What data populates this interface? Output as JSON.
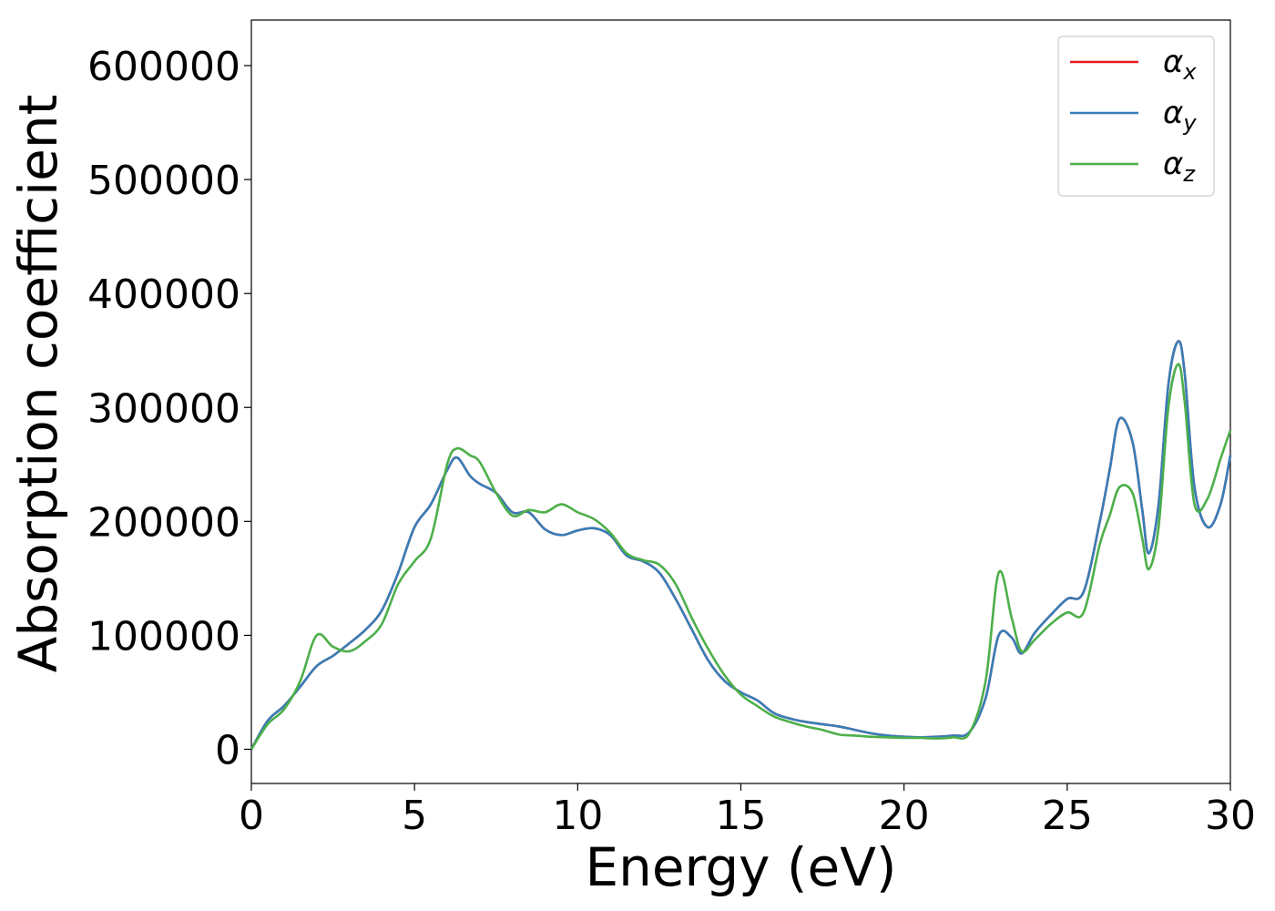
{
  "chart_data": {
    "type": "line",
    "title": "",
    "xlabel": "Energy (eV)",
    "ylabel": "Absorption coefficient",
    "xlim": [
      0,
      30
    ],
    "ylim": [
      -30000,
      640000
    ],
    "xticks": [
      0,
      5,
      10,
      15,
      20,
      25,
      30
    ],
    "yticks": [
      0,
      100000,
      200000,
      300000,
      400000,
      500000,
      600000
    ],
    "xtick_labels": [
      "0",
      "5",
      "10",
      "15",
      "20",
      "25",
      "30"
    ],
    "ytick_labels": [
      "0",
      "100000",
      "200000",
      "300000",
      "400000",
      "500000",
      "600000"
    ],
    "grid": false,
    "legend_position": "top-right",
    "series": [
      {
        "name": "αx",
        "label_base": "α",
        "label_sub": "x",
        "color": "#e41a1c",
        "x": [
          0,
          0.5,
          1,
          1.5,
          2,
          2.5,
          3,
          3.5,
          4,
          4.5,
          5,
          5.5,
          6,
          6.3,
          6.7,
          7,
          7.5,
          8,
          8.5,
          9,
          9.5,
          10,
          10.5,
          11,
          11.5,
          12,
          12.5,
          13,
          13.5,
          14,
          14.5,
          15,
          15.5,
          16,
          16.5,
          17,
          17.5,
          18,
          18.5,
          19,
          19.5,
          20,
          20.5,
          21,
          21.5,
          22,
          22.5,
          22.9,
          23.3,
          23.6,
          24,
          24.5,
          25,
          25.5,
          26,
          26.3,
          26.6,
          27,
          27.3,
          27.5,
          27.8,
          28.1,
          28.4,
          28.6,
          28.9,
          29.3,
          29.7,
          30
        ],
        "y": [
          0,
          25000,
          38000,
          55000,
          73000,
          82000,
          93000,
          105000,
          122000,
          155000,
          195000,
          215000,
          245000,
          256000,
          240000,
          233000,
          225000,
          208000,
          208000,
          193000,
          188000,
          192000,
          194000,
          188000,
          170000,
          165000,
          155000,
          132000,
          105000,
          78000,
          60000,
          50000,
          43000,
          32000,
          27000,
          24000,
          22000,
          20000,
          17000,
          14000,
          12000,
          11000,
          10500,
          11000,
          12000,
          15000,
          45000,
          100000,
          98000,
          84000,
          102000,
          118000,
          132000,
          138000,
          200000,
          245000,
          290000,
          270000,
          210000,
          172000,
          215000,
          320000,
          358000,
          330000,
          230000,
          195000,
          215000,
          258000
        ]
      },
      {
        "name": "αy",
        "label_base": "α",
        "label_sub": "y",
        "color": "#377eb8",
        "x": [
          0,
          0.5,
          1,
          1.5,
          2,
          2.5,
          3,
          3.5,
          4,
          4.5,
          5,
          5.5,
          6,
          6.3,
          6.7,
          7,
          7.5,
          8,
          8.5,
          9,
          9.5,
          10,
          10.5,
          11,
          11.5,
          12,
          12.5,
          13,
          13.5,
          14,
          14.5,
          15,
          15.5,
          16,
          16.5,
          17,
          17.5,
          18,
          18.5,
          19,
          19.5,
          20,
          20.5,
          21,
          21.5,
          22,
          22.5,
          22.9,
          23.3,
          23.6,
          24,
          24.5,
          25,
          25.5,
          26,
          26.3,
          26.6,
          27,
          27.3,
          27.5,
          27.8,
          28.1,
          28.4,
          28.6,
          28.9,
          29.3,
          29.7,
          30
        ],
        "y": [
          0,
          25000,
          38000,
          55000,
          73000,
          82000,
          93000,
          105000,
          122000,
          155000,
          195000,
          215000,
          245000,
          256000,
          240000,
          233000,
          225000,
          208000,
          208000,
          193000,
          188000,
          192000,
          194000,
          188000,
          170000,
          165000,
          155000,
          132000,
          105000,
          78000,
          60000,
          50000,
          43000,
          32000,
          27000,
          24000,
          22000,
          20000,
          17000,
          14000,
          12000,
          11000,
          10500,
          11000,
          12000,
          15000,
          45000,
          100000,
          98000,
          84000,
          102000,
          118000,
          132000,
          138000,
          200000,
          245000,
          290000,
          270000,
          210000,
          172000,
          215000,
          320000,
          358000,
          330000,
          230000,
          195000,
          215000,
          258000
        ]
      },
      {
        "name": "αz",
        "label_base": "α",
        "label_sub": "z",
        "color": "#4daf4a",
        "x": [
          0,
          0.5,
          1,
          1.5,
          2,
          2.5,
          3,
          3.5,
          4,
          4.5,
          5,
          5.5,
          6,
          6.3,
          6.7,
          7,
          7.5,
          8,
          8.5,
          9,
          9.5,
          10,
          10.5,
          11,
          11.5,
          12,
          12.5,
          13,
          13.5,
          14,
          14.5,
          15,
          15.5,
          16,
          16.5,
          17,
          17.5,
          18,
          18.5,
          19,
          19.5,
          20,
          20.5,
          21,
          21.5,
          22,
          22.5,
          22.9,
          23.3,
          23.6,
          24,
          24.5,
          25,
          25.5,
          26,
          26.3,
          26.6,
          27,
          27.3,
          27.5,
          27.8,
          28.1,
          28.4,
          28.6,
          28.9,
          29.3,
          29.7,
          30
        ],
        "y": [
          0,
          22000,
          35000,
          60000,
          100000,
          90000,
          86000,
          95000,
          110000,
          145000,
          165000,
          185000,
          250000,
          264000,
          258000,
          252000,
          225000,
          205000,
          210000,
          208000,
          215000,
          208000,
          202000,
          190000,
          172000,
          166000,
          162000,
          145000,
          115000,
          88000,
          65000,
          48000,
          38000,
          29000,
          24000,
          20000,
          17000,
          13000,
          12000,
          11000,
          10500,
          10000,
          10000,
          9500,
          10500,
          14000,
          60000,
          155000,
          115000,
          86000,
          96000,
          110000,
          120000,
          120000,
          180000,
          205000,
          230000,
          225000,
          185000,
          158000,
          195000,
          300000,
          338000,
          305000,
          215000,
          220000,
          255000,
          280000
        ]
      }
    ]
  }
}
